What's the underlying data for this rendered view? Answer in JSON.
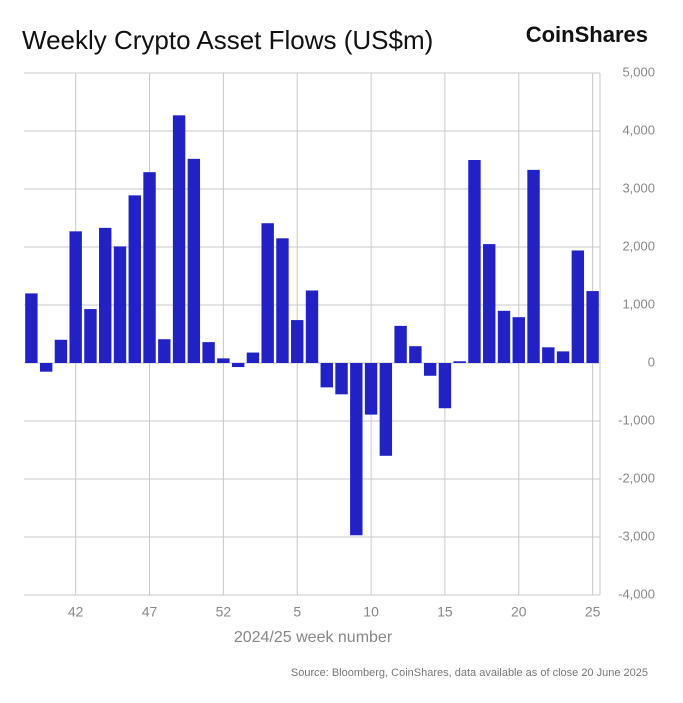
{
  "chart_data": {
    "type": "bar",
    "title": "Weekly Crypto Asset Flows (US$m)",
    "brand": "CoinShares",
    "x_label": "2024/25 week number",
    "source": "Source: Bloomberg, CoinShares, data available as of close 20 June 2025",
    "categories": [
      null,
      null,
      null,
      "42",
      null,
      null,
      null,
      null,
      "47",
      null,
      null,
      null,
      null,
      "52",
      null,
      null,
      null,
      null,
      "5",
      null,
      null,
      null,
      null,
      "10",
      null,
      null,
      null,
      null,
      "15",
      null,
      null,
      null,
      null,
      "20",
      null,
      null,
      null,
      null,
      "25"
    ],
    "values": [
      1200,
      -150,
      400,
      2270,
      930,
      2330,
      2010,
      2890,
      3290,
      410,
      4270,
      3520,
      360,
      80,
      -70,
      180,
      2410,
      2150,
      740,
      1250,
      -420,
      -540,
      -2970,
      -890,
      -1600,
      640,
      290,
      -220,
      -780,
      30,
      3500,
      2050,
      900,
      790,
      3330,
      270,
      200,
      1940,
      1240
    ],
    "color": "#2222c4",
    "ylim": [
      -4000,
      5000
    ],
    "yticks": [
      {
        "value": -4000,
        "label": "-4,000"
      },
      {
        "value": -3000,
        "label": "-3,000"
      },
      {
        "value": -2000,
        "label": "-2,000"
      },
      {
        "value": -1000,
        "label": "-1,000"
      },
      0,
      {
        "value": 1000,
        "label": "1,000"
      },
      {
        "value": 2000,
        "label": "2,000"
      },
      {
        "value": 3000,
        "label": "3,000"
      },
      {
        "value": 4000,
        "label": "4,000"
      },
      {
        "value": 5000,
        "label": "5,000"
      }
    ],
    "grid": true
  }
}
